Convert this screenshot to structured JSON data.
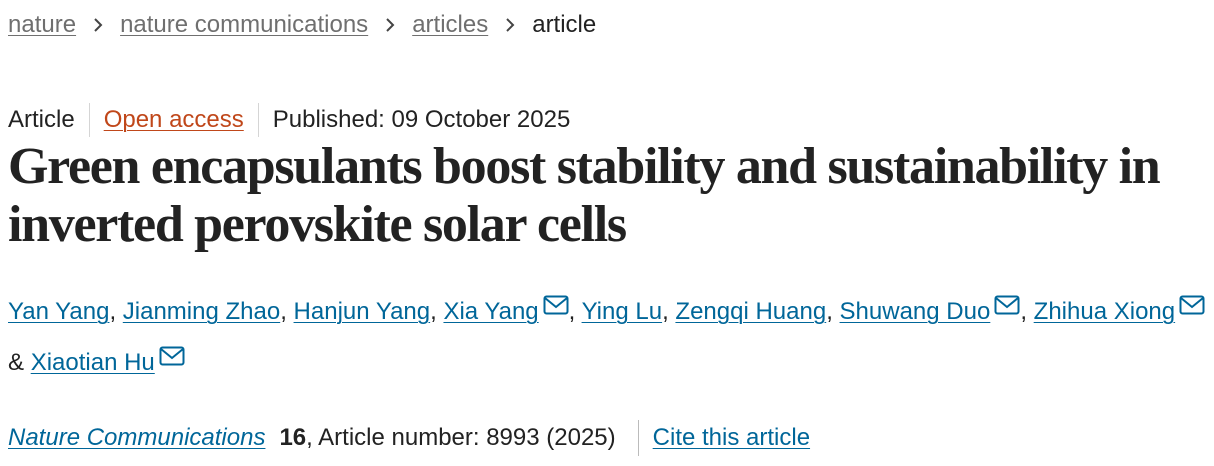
{
  "breadcrumbs": [
    "nature",
    "nature communications",
    "articles",
    "article"
  ],
  "meta": {
    "type": "Article",
    "access": "Open access",
    "published": "Published: 09 October 2025"
  },
  "title": "Green encapsulants boost stability and sustainability in inverted perovskite solar cells",
  "authors": {
    "separator": ",",
    "joiner": "&",
    "list": [
      {
        "name": "Yan Yang",
        "email": false
      },
      {
        "name": "Jianming Zhao",
        "email": false
      },
      {
        "name": "Hanjun Yang",
        "email": false
      },
      {
        "name": "Xia Yang",
        "email": true
      },
      {
        "name": "Ying Lu",
        "email": false
      },
      {
        "name": "Zengqi Huang",
        "email": false
      },
      {
        "name": "Shuwang Duo",
        "email": true
      },
      {
        "name": "Zhihua Xiong",
        "email": true
      },
      {
        "name": "Xiaotian Hu",
        "email": true
      }
    ]
  },
  "citation": {
    "journal": "Nature Communications",
    "volume": "16",
    "details": ", Article number: 8993 (2025)",
    "cite": "Cite this article"
  }
}
